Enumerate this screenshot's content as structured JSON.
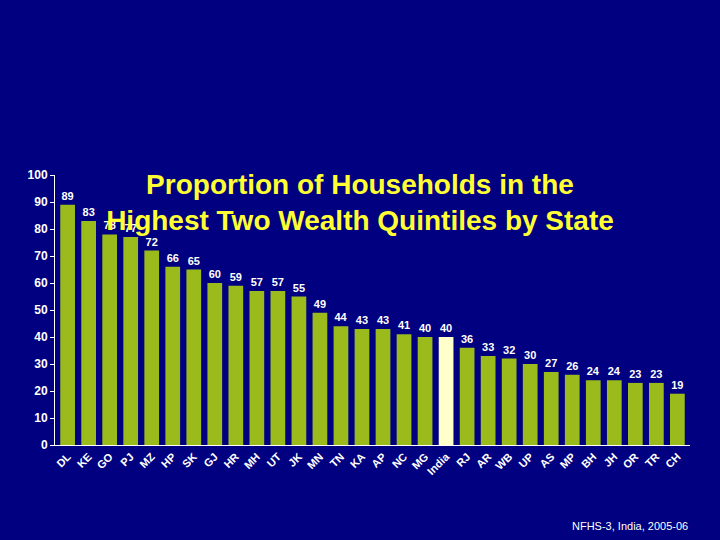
{
  "chart_data": {
    "type": "bar",
    "title": [
      "Proportion of Households in the",
      "Highest Two Wealth Quintiles by State"
    ],
    "source": "NFHS-3, India, 2005-06",
    "categories": [
      "DL",
      "KE",
      "GO",
      "PJ",
      "MZ",
      "HP",
      "SK",
      "GJ",
      "HR",
      "MH",
      "UT",
      "JK",
      "MN",
      "TN",
      "KA",
      "AP",
      "NC",
      "MG",
      "India",
      "RJ",
      "AR",
      "WB",
      "UP",
      "AS",
      "MP",
      "BH",
      "JH",
      "OR",
      "TR",
      "CH"
    ],
    "values": [
      89,
      83,
      78,
      77,
      72,
      66,
      65,
      60,
      59,
      57,
      57,
      55,
      49,
      44,
      43,
      43,
      41,
      40,
      40,
      36,
      33,
      32,
      30,
      27,
      26,
      24,
      24,
      23,
      23,
      19
    ],
    "colors": [
      "#9bbb1c",
      "#9bbb1c",
      "#9bbb1c",
      "#9bbb1c",
      "#9bbb1c",
      "#9bbb1c",
      "#9bbb1c",
      "#9bbb1c",
      "#9bbb1c",
      "#9bbb1c",
      "#9bbb1c",
      "#9bbb1c",
      "#9bbb1c",
      "#9bbb1c",
      "#9bbb1c",
      "#9bbb1c",
      "#9bbb1c",
      "#9bbb1c",
      "#ffffcc",
      "#9bbb1c",
      "#9bbb1c",
      "#9bbb1c",
      "#9bbb1c",
      "#9bbb1c",
      "#9bbb1c",
      "#9bbb1c",
      "#9bbb1c",
      "#9bbb1c",
      "#9bbb1c",
      "#9bbb1c"
    ],
    "ylim": [
      0,
      100
    ],
    "yticks": [
      0,
      10,
      20,
      30,
      40,
      50,
      60,
      70,
      80,
      90,
      100
    ],
    "grid": false,
    "data_labels": true
  }
}
